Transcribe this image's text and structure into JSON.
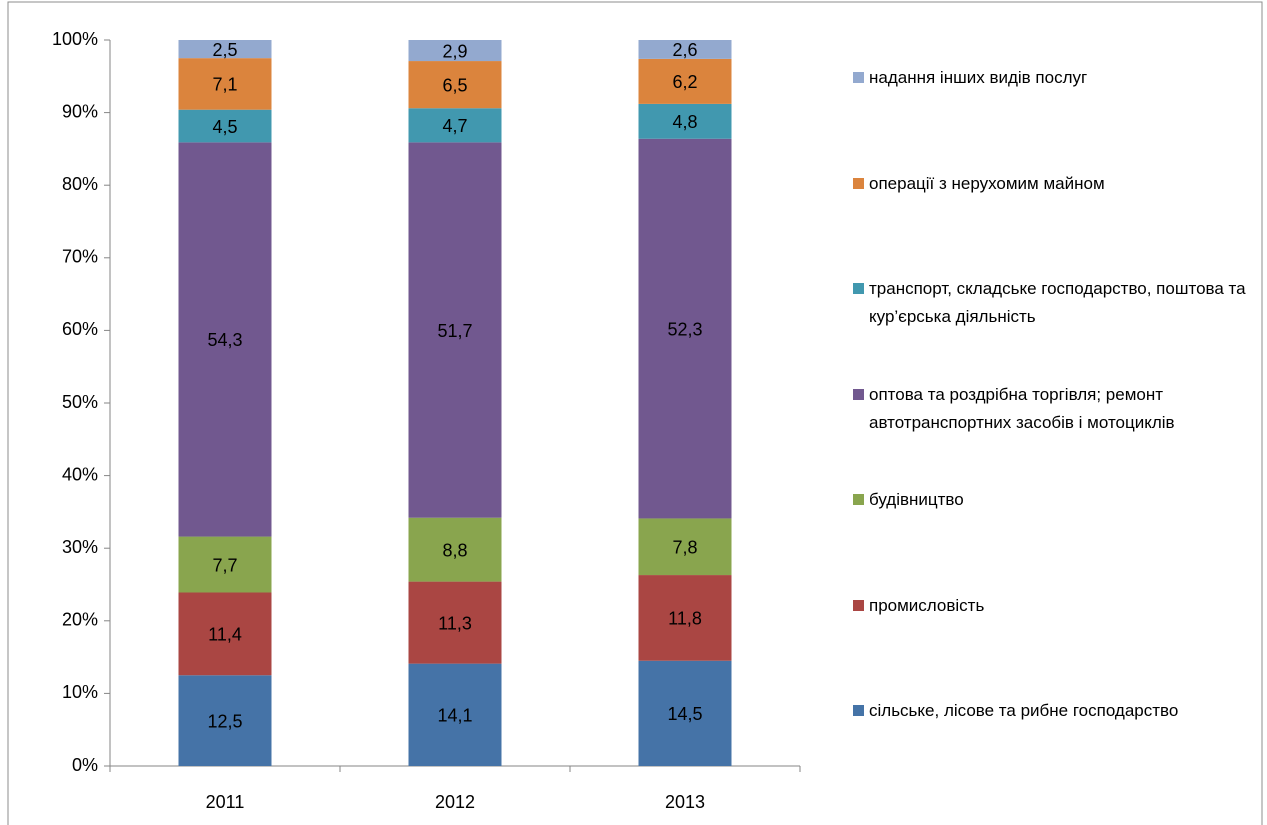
{
  "chart_data": {
    "type": "stacked_bar",
    "categories": [
      "2011",
      "2012",
      "2013"
    ],
    "ylim": [
      0,
      100
    ],
    "yticks": [
      {
        "value": 0,
        "label": "0%"
      },
      {
        "value": 10,
        "label": "10%"
      },
      {
        "value": 20,
        "label": "20%"
      },
      {
        "value": 30,
        "label": "30%"
      },
      {
        "value": 40,
        "label": "40%"
      },
      {
        "value": 50,
        "label": "50%"
      },
      {
        "value": 60,
        "label": "60%"
      },
      {
        "value": 70,
        "label": "70%"
      },
      {
        "value": 80,
        "label": "80%"
      },
      {
        "value": 90,
        "label": "90%"
      },
      {
        "value": 100,
        "label": "100%"
      }
    ],
    "grid": false,
    "legend": "right",
    "series": [
      {
        "name": "сільське, лісове та рибне господарство",
        "color": "#4573a7",
        "values": [
          12.5,
          14.1,
          14.5
        ],
        "value_labels": [
          "12,5",
          "14,1",
          "14,5"
        ]
      },
      {
        "name": "промисловість",
        "color": "#aa4643",
        "values": [
          11.4,
          11.3,
          11.8
        ],
        "value_labels": [
          "11,4",
          "11,3",
          "11,8"
        ]
      },
      {
        "name": "будівництво",
        "color": "#89a54e",
        "values": [
          7.7,
          8.8,
          7.8
        ],
        "value_labels": [
          "7,7",
          "8,8",
          "7,8"
        ]
      },
      {
        "name": "оптова та роздрібна торгівля; ремонт автотранспортних засобів і мотоциклів",
        "color": "#71588f",
        "values": [
          54.3,
          51.7,
          52.3
        ],
        "value_labels": [
          "54,3",
          "51,7",
          "52,3"
        ]
      },
      {
        "name": "транспорт, складське господарство, поштова та кур’єрська діяльність",
        "color": "#4198af",
        "values": [
          4.5,
          4.7,
          4.8
        ],
        "value_labels": [
          "4,5",
          "4,7",
          "4,8"
        ]
      },
      {
        "name": "операції з нерухомим майном",
        "color": "#db843d",
        "values": [
          7.1,
          6.5,
          6.2
        ],
        "value_labels": [
          "7,1",
          "6,5",
          "6,2"
        ]
      },
      {
        "name": "надання інших видів послуг",
        "color": "#93a9cf",
        "values": [
          2.5,
          2.9,
          2.6
        ],
        "value_labels": [
          "2,5",
          "2,9",
          "2,6"
        ]
      }
    ]
  }
}
